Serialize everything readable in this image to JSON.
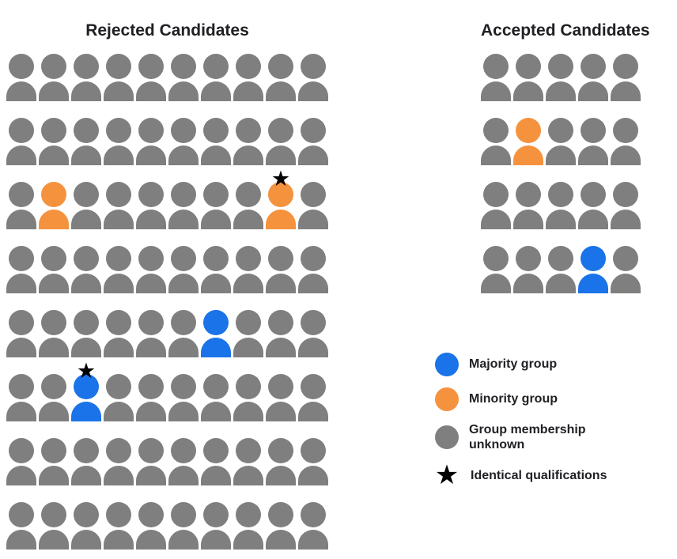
{
  "colors": {
    "majority": "#1A73E8",
    "minority": "#F5923E",
    "unknown": "#7F7F7F",
    "star": "#000000"
  },
  "code_map": {
    "g": "unknown",
    "o": "minority",
    "b": "majority"
  },
  "rejected": {
    "title": "Rejected Candidates",
    "cols": 10,
    "rows": [
      [
        "g",
        "g",
        "g",
        "g",
        "g",
        "g",
        "g",
        "g",
        "g",
        "g"
      ],
      [
        "g",
        "g",
        "g",
        "g",
        "g",
        "g",
        "g",
        "g",
        "g",
        "g"
      ],
      [
        "g",
        "o",
        "g",
        "g",
        "g",
        "g",
        "g",
        "g",
        "o*",
        "g"
      ],
      [
        "g",
        "g",
        "g",
        "g",
        "g",
        "g",
        "g",
        "g",
        "g",
        "g"
      ],
      [
        "g",
        "g",
        "g",
        "g",
        "g",
        "g",
        "b",
        "g",
        "g",
        "g"
      ],
      [
        "g",
        "g",
        "b*",
        "g",
        "g",
        "g",
        "g",
        "g",
        "g",
        "g"
      ],
      [
        "g",
        "g",
        "g",
        "g",
        "g",
        "g",
        "g",
        "g",
        "g",
        "g"
      ],
      [
        "g",
        "g",
        "g",
        "g",
        "g",
        "g",
        "g",
        "g",
        "g",
        "g"
      ]
    ]
  },
  "accepted": {
    "title": "Accepted Candidates",
    "cols": 5,
    "rows": [
      [
        "g",
        "g",
        "g",
        "g",
        "g"
      ],
      [
        "g",
        "o",
        "g",
        "g",
        "g"
      ],
      [
        "g",
        "g",
        "g",
        "g",
        "g"
      ],
      [
        "g",
        "g",
        "g",
        "b",
        "g"
      ]
    ]
  },
  "legend": {
    "star_glyph": "★",
    "items": [
      {
        "swatch": "majority",
        "label": "Majority group"
      },
      {
        "swatch": "minority",
        "label": "Minority group"
      },
      {
        "swatch": "unknown",
        "label": "Group membership unknown"
      },
      {
        "swatch": "star",
        "label": "Identical qualifications"
      }
    ]
  }
}
